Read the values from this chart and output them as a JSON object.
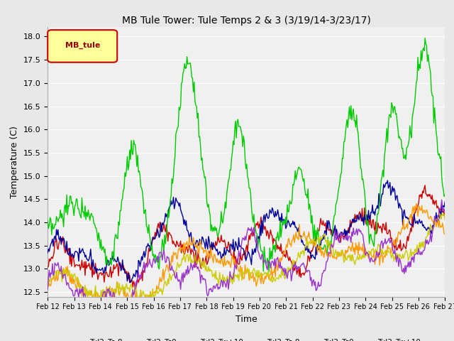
{
  "title": "MB Tule Tower: Tule Temps 2 & 3 (3/19/14-3/23/17)",
  "xlabel": "Time",
  "ylabel": "Temperature (C)",
  "ylim": [
    12.4,
    18.2
  ],
  "xtick_labels": [
    "Feb 12",
    "Feb 13",
    "Feb 14",
    "Feb 15",
    "Feb 16",
    "Feb 17",
    "Feb 18",
    "Feb 19",
    "Feb 20",
    "Feb 21",
    "Feb 22",
    "Feb 23",
    "Feb 24",
    "Feb 25",
    "Feb 26",
    "Feb 27"
  ],
  "ytick_vals": [
    12.5,
    13.0,
    13.5,
    14.0,
    14.5,
    15.0,
    15.5,
    16.0,
    16.5,
    17.0,
    17.5,
    18.0
  ],
  "legend_label": "MB_tule",
  "series_colors": {
    "Tul2_Ts-8": "#cc0000",
    "Tul2_Ts0": "#000099",
    "Tul2_Tw+10": "#00cc00",
    "Tul3_Ts-8": "#ff9900",
    "Tul3_Ts0": "#cccc00",
    "Tul3_Tw+10": "#9933cc"
  },
  "background_color": "#e8e8e8",
  "plot_bg_color": "#f0f0f0",
  "grid_color": "#ffffff",
  "linewidth": 1.0
}
